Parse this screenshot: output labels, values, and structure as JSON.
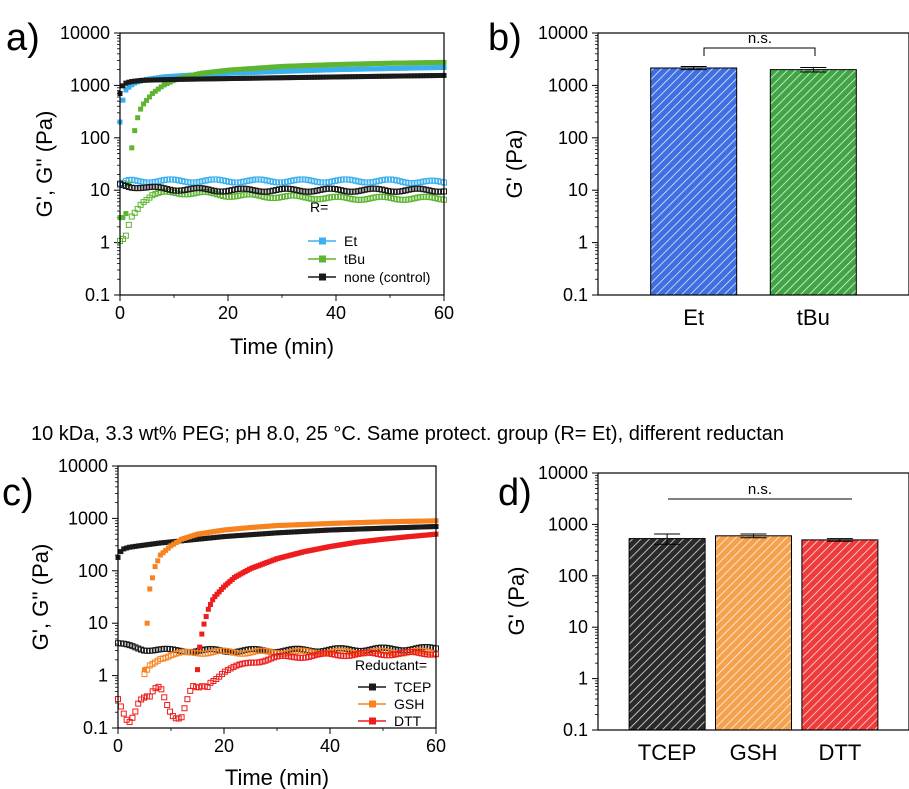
{
  "caption": "10 kDa, 3.3 wt% PEG; pH 8.0, 25 °C. Same protect. group (R= Et), different reductan",
  "chart_data": [
    {
      "panel": "a)",
      "type": "scatter",
      "xlabel": "Time (min)",
      "ylabel": "G', G'' (Pa)",
      "xlim": [
        0,
        60
      ],
      "ylim": [
        0.1,
        10000
      ],
      "yscale": "log",
      "xticks": [
        "0",
        "20",
        "40",
        "60"
      ],
      "yticks": [
        "0.1",
        "1",
        "10",
        "100",
        "1000",
        "10000"
      ],
      "legend_title": "R=",
      "legend_position": "bottom-right",
      "series": [
        {
          "name": "Et",
          "color": "#3ab0ef",
          "modulus": "G'",
          "x": [
            0,
            0.5,
            1,
            2,
            3,
            5,
            8,
            12,
            20,
            30,
            40,
            50,
            60
          ],
          "y": [
            200,
            500,
            800,
            1000,
            1150,
            1300,
            1450,
            1550,
            1700,
            1850,
            2000,
            2100,
            2200
          ]
        },
        {
          "name": "Et",
          "color": "#3ab0ef",
          "modulus": "G''",
          "x": [
            0,
            1,
            2,
            5,
            10,
            20,
            30,
            40,
            50,
            60
          ],
          "y": [
            12,
            14,
            15,
            15,
            15,
            15,
            15,
            15,
            15,
            14
          ]
        },
        {
          "name": "tBu",
          "color": "#5db531",
          "modulus": "G'",
          "x": [
            0,
            1,
            1.5,
            2,
            3,
            4,
            6,
            8,
            10,
            12,
            15,
            20,
            30,
            40,
            50,
            60
          ],
          "y": [
            3,
            3,
            8,
            50,
            200,
            400,
            700,
            1000,
            1250,
            1450,
            1700,
            1950,
            2300,
            2500,
            2650,
            2750
          ]
        },
        {
          "name": "tBu",
          "color": "#5db531",
          "modulus": "G''",
          "x": [
            0,
            1,
            2,
            4,
            6,
            8,
            10,
            15,
            20,
            30,
            40,
            50,
            60
          ],
          "y": [
            1,
            1.2,
            3,
            6,
            8,
            8.8,
            9,
            8.8,
            8,
            7.5,
            7,
            7,
            7
          ]
        },
        {
          "name": "none (control)",
          "color": "#1a1a1a",
          "modulus": "G'",
          "x": [
            0,
            0.3,
            0.6,
            1,
            2,
            4,
            10,
            20,
            30,
            40,
            50,
            60
          ],
          "y": [
            700,
            900,
            1000,
            1100,
            1180,
            1250,
            1300,
            1350,
            1400,
            1450,
            1500,
            1550
          ]
        },
        {
          "name": "none (control)",
          "color": "#1a1a1a",
          "modulus": "G''",
          "x": [
            0,
            2,
            5,
            10,
            20,
            30,
            40,
            50,
            60
          ],
          "y": [
            13,
            12,
            11,
            10.5,
            10,
            10,
            10,
            10,
            10
          ]
        }
      ]
    },
    {
      "panel": "b)",
      "type": "bar",
      "ylabel": "G' (Pa)",
      "ylim": [
        0.1,
        10000
      ],
      "yscale": "log",
      "yticks": [
        "0.1",
        "1",
        "10",
        "100",
        "1000",
        "10000"
      ],
      "categories": [
        "Et",
        "tBu"
      ],
      "values": [
        2150,
        2000
      ],
      "errors": [
        150,
        200
      ],
      "colors": [
        "#3f6fe0",
        "#41a545"
      ],
      "annotation": "n.s."
    },
    {
      "panel": "c)",
      "type": "scatter",
      "xlabel": "Time (min)",
      "ylabel": "G', G'' (Pa)",
      "xlim": [
        0,
        60
      ],
      "ylim": [
        0.1,
        10000
      ],
      "yscale": "log",
      "xticks": [
        "0",
        "20",
        "40",
        "60"
      ],
      "yticks": [
        "0.1",
        "1",
        "10",
        "100",
        "1000",
        "10000"
      ],
      "legend_title": "Reductant=",
      "legend_position": "bottom-right",
      "series": [
        {
          "name": "TCEP",
          "color": "#1a1a1a",
          "modulus": "G'",
          "x": [
            0,
            0.5,
            1,
            2,
            4,
            8,
            15,
            20,
            30,
            40,
            50,
            60
          ],
          "y": [
            180,
            230,
            260,
            280,
            300,
            340,
            400,
            450,
            530,
            600,
            650,
            700
          ]
        },
        {
          "name": "TCEP",
          "color": "#1a1a1a",
          "modulus": "G''",
          "x": [
            0,
            1,
            3,
            5,
            10,
            20,
            30,
            40,
            50,
            60
          ],
          "y": [
            4,
            3.8,
            3.5,
            3.2,
            3,
            3,
            3,
            3.1,
            3.2,
            3.3
          ]
        },
        {
          "name": "GSH",
          "color": "#f7831e",
          "modulus": "G'",
          "x": [
            5,
            5.3,
            5.7,
            6,
            7,
            8,
            10,
            12,
            15,
            20,
            25,
            30,
            40,
            50,
            60
          ],
          "y": [
            1.3,
            5,
            20,
            45,
            120,
            200,
            300,
            400,
            500,
            600,
            670,
            730,
            800,
            860,
            900
          ]
        },
        {
          "name": "GSH",
          "color": "#f7831e",
          "modulus": "G''",
          "x": [
            5,
            6,
            8,
            10,
            15,
            20,
            30,
            40,
            50,
            60
          ],
          "y": [
            1,
            1.5,
            2.2,
            2.5,
            2.8,
            2.8,
            2.8,
            2.8,
            2.8,
            2.8
          ]
        },
        {
          "name": "DTT",
          "color": "#ee1c1c",
          "modulus": "G'",
          "x": [
            15,
            15.3,
            16,
            17,
            18,
            20,
            22,
            25,
            30,
            35,
            40,
            45,
            50,
            55,
            60
          ],
          "y": [
            1.3,
            3,
            8,
            18,
            30,
            50,
            75,
            110,
            170,
            230,
            290,
            350,
            400,
            450,
            500
          ]
        },
        {
          "name": "DTT",
          "color": "#ee1c1c",
          "modulus": "G''",
          "x": [
            0,
            2,
            4,
            6,
            8,
            10,
            12,
            14,
            15,
            17,
            20,
            25,
            30,
            40,
            50,
            60
          ],
          "y": [
            0.3,
            0.2,
            0.4,
            0.25,
            0.5,
            0.3,
            0.2,
            0.4,
            0.35,
            0.7,
            1.2,
            1.8,
            2.2,
            2.5,
            2.6,
            2.7
          ]
        }
      ]
    },
    {
      "panel": "d)",
      "type": "bar",
      "ylabel": "G' (Pa)",
      "ylim": [
        0.1,
        10000
      ],
      "yscale": "log",
      "yticks": [
        "0.1",
        "1",
        "10",
        "100",
        "1000",
        "10000"
      ],
      "categories": [
        "TCEP",
        "GSH",
        "DTT"
      ],
      "values": [
        530,
        600,
        500
      ],
      "errors": [
        120,
        50,
        30
      ],
      "colors": [
        "#2a2a2a",
        "#f5a24e",
        "#ee3b3b"
      ],
      "annotation": "n.s."
    }
  ]
}
